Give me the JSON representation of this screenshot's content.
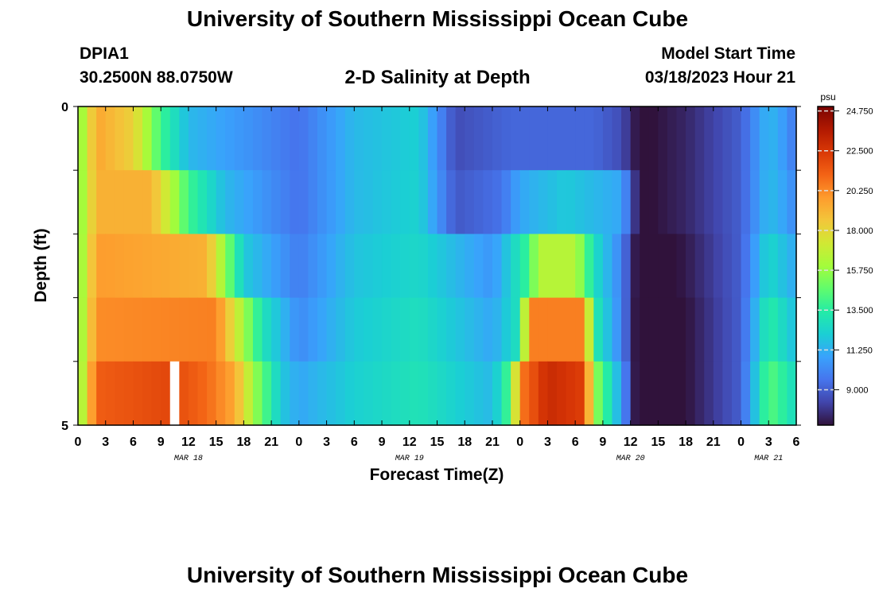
{
  "header": {
    "title": "University of Southern Mississippi Ocean Cube",
    "station": "DPIA1",
    "coords": "30.2500N  88.0750W",
    "subtitle": "2-D Salinity at Depth",
    "model_start_label": "Model Start Time",
    "model_start_value": "03/18/2023 Hour 21"
  },
  "footer": {
    "title": "University of Southern Mississippi Ocean Cube"
  },
  "colors": {
    "ramp": [
      "#30123b",
      "#4145ab",
      "#4675ed",
      "#39a2fc",
      "#1bcfd4",
      "#24eca6",
      "#61fc6c",
      "#a4fc3b",
      "#d1e834",
      "#f3c63a",
      "#fe9b2d",
      "#f36315",
      "#d93806",
      "#b11901",
      "#7a0402"
    ]
  },
  "chart_data": {
    "type": "heatmap",
    "xlabel": "Forecast Time(Z)",
    "ylabel": "Depth (ft)",
    "y_tick_labels": [
      "0",
      "5"
    ],
    "ylim": [
      0,
      5
    ],
    "x_tick_labels": [
      "0",
      "3",
      "6",
      "9",
      "12",
      "15",
      "18",
      "21",
      "0",
      "3",
      "6",
      "9",
      "12",
      "15",
      "18",
      "21",
      "0",
      "3",
      "6",
      "9",
      "12",
      "15",
      "18",
      "21",
      "0",
      "3",
      "6"
    ],
    "date_labels": [
      {
        "label": "MAR 18",
        "at_tick": 4
      },
      {
        "label": "MAR 19",
        "at_tick": 12
      },
      {
        "label": "MAR 20",
        "at_tick": 20
      },
      {
        "label": "MAR 21",
        "at_tick": 25
      }
    ],
    "hours_from_first_tick": 78,
    "depth_layers": 5,
    "missing_cell": {
      "hour": 10,
      "layer": 4
    },
    "colorbar": {
      "unit": "psu",
      "min": 7.0,
      "max": 25.0,
      "tick_values": [
        24.75,
        22.5,
        20.25,
        18.0,
        15.75,
        13.5,
        11.25,
        9.0
      ],
      "tick_labels": [
        "24.750",
        "22.500",
        "20.250",
        "18.000",
        "15.750",
        "13.500",
        "11.250",
        "9.000"
      ]
    },
    "salinity_profile_by_layer": [
      {
        "layer": 0,
        "keys": [
          [
            0,
            15
          ],
          [
            2,
            19.5
          ],
          [
            6,
            18.2
          ],
          [
            9,
            14
          ],
          [
            12,
            11.5
          ],
          [
            24,
            9.5
          ],
          [
            30,
            11.5
          ],
          [
            37,
            12.2
          ],
          [
            41,
            8.5
          ],
          [
            47,
            9.2
          ],
          [
            56,
            9.2
          ],
          [
            59,
            8.5
          ],
          [
            61,
            6.8
          ],
          [
            66,
            7.5
          ],
          [
            72,
            9
          ],
          [
            75,
            11.5
          ],
          [
            77,
            10.5
          ],
          [
            78,
            9.5
          ]
        ]
      },
      {
        "layer": 1,
        "keys": [
          [
            0,
            15
          ],
          [
            2,
            19.2
          ],
          [
            8,
            19.2
          ],
          [
            12,
            14
          ],
          [
            16,
            11.5
          ],
          [
            24,
            9.5
          ],
          [
            30,
            11.5
          ],
          [
            37,
            12.3
          ],
          [
            41,
            8.8
          ],
          [
            46,
            9.5
          ],
          [
            48,
            11
          ],
          [
            53,
            12
          ],
          [
            59,
            11
          ],
          [
            61,
            6.8
          ],
          [
            66,
            7.5
          ],
          [
            72,
            9
          ],
          [
            75,
            11.6
          ],
          [
            77,
            10.8
          ],
          [
            78,
            10
          ]
        ]
      },
      {
        "layer": 2,
        "keys": [
          [
            0,
            15
          ],
          [
            2,
            19.8
          ],
          [
            14,
            19.2
          ],
          [
            16,
            15.5
          ],
          [
            18,
            12
          ],
          [
            24,
            9.8
          ],
          [
            30,
            11.8
          ],
          [
            37,
            12.5
          ],
          [
            45,
            10.5
          ],
          [
            49,
            14
          ],
          [
            50,
            16.5
          ],
          [
            54,
            16.5
          ],
          [
            56,
            12.8
          ],
          [
            59,
            10
          ],
          [
            61,
            6.3
          ],
          [
            66,
            7.2
          ],
          [
            72,
            9
          ],
          [
            75,
            12.5
          ],
          [
            77,
            11.5
          ],
          [
            78,
            11
          ]
        ]
      },
      {
        "layer": 3,
        "keys": [
          [
            0,
            15
          ],
          [
            2,
            20.2
          ],
          [
            15,
            20.5
          ],
          [
            17,
            17.5
          ],
          [
            20,
            13
          ],
          [
            24,
            10.2
          ],
          [
            30,
            12
          ],
          [
            37,
            12.8
          ],
          [
            45,
            11
          ],
          [
            48,
            13
          ],
          [
            49,
            20.5
          ],
          [
            55,
            20.5
          ],
          [
            56,
            13.5
          ],
          [
            59,
            10
          ],
          [
            61,
            6.2
          ],
          [
            66,
            7
          ],
          [
            72,
            9
          ],
          [
            75,
            13.5
          ],
          [
            77,
            12.3
          ],
          [
            78,
            11.5
          ]
        ]
      },
      {
        "layer": 4,
        "keys": [
          [
            0,
            15
          ],
          [
            2,
            21.3
          ],
          [
            10,
            22
          ],
          [
            14,
            21
          ],
          [
            17,
            19.5
          ],
          [
            19,
            16
          ],
          [
            22,
            12
          ],
          [
            24,
            11
          ],
          [
            30,
            12.2
          ],
          [
            37,
            13
          ],
          [
            45,
            11.5
          ],
          [
            47,
            14.5
          ],
          [
            48,
            20.5
          ],
          [
            51,
            23
          ],
          [
            55,
            22.2
          ],
          [
            56,
            16
          ],
          [
            59,
            10.8
          ],
          [
            61,
            6
          ],
          [
            66,
            7
          ],
          [
            72,
            9
          ],
          [
            75,
            14.5
          ],
          [
            77,
            13.3
          ],
          [
            78,
            12.5
          ]
        ]
      }
    ]
  }
}
